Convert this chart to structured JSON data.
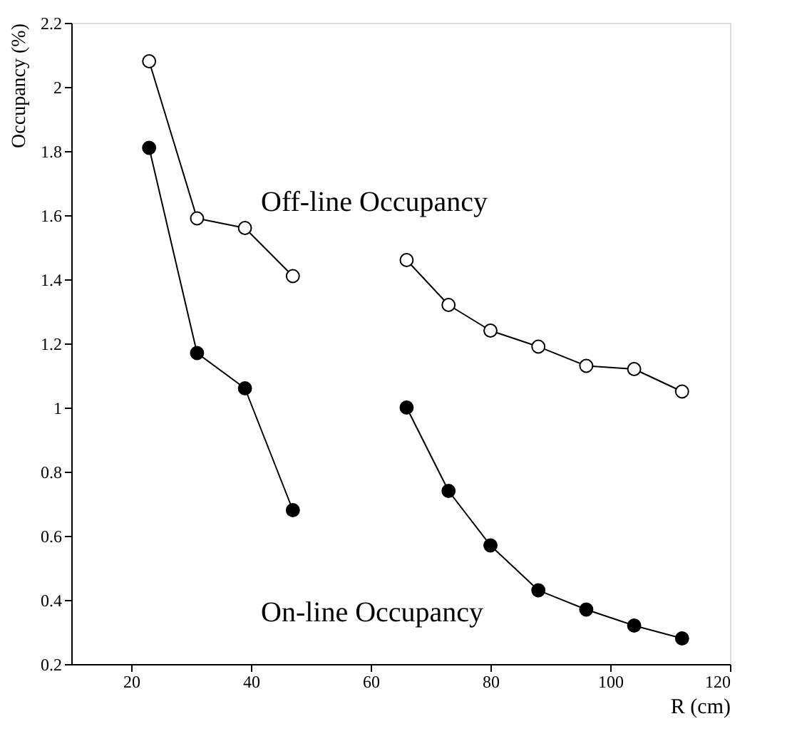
{
  "chart_data": {
    "type": "line",
    "xlabel": "R (cm)",
    "ylabel": "Occupancy (%)",
    "xlim": [
      10,
      120
    ],
    "xticks": [
      20,
      40,
      60,
      80,
      100,
      120
    ],
    "ylim": [
      0.2,
      2.2
    ],
    "yticks": [
      0.2,
      0.4,
      0.6,
      0.8,
      1,
      1.2,
      1.4,
      1.6,
      1.8,
      2,
      2.2
    ],
    "grid": false,
    "marker": "circle",
    "line_style": "solid",
    "series": [
      {
        "color": "#000000",
        "x": [
          23,
          31,
          39,
          47
        ],
        "values": [
          2.08,
          1.59,
          1.56,
          1.41
        ]
      },
      {
        "color": "#000000",
        "x": [
          66,
          73,
          80,
          88,
          96,
          104,
          112
        ],
        "values": [
          1.46,
          1.32,
          1.24,
          1.19,
          1.13,
          1.12,
          1.05
        ]
      },
      {
        "color": "#000000",
        "x": [
          23,
          31,
          39,
          47
        ],
        "values": [
          1.81,
          1.17,
          1.06,
          0.68
        ]
      },
      {
        "color": "#000000",
        "x": [
          66,
          73,
          80,
          88,
          96,
          104,
          112
        ],
        "values": [
          1.0,
          0.74,
          0.57,
          0.43,
          0.37,
          0.32,
          0.28
        ]
      }
    ],
    "annotations": [
      "Off-line Occupancy",
      "On-line Occupancy"
    ]
  }
}
